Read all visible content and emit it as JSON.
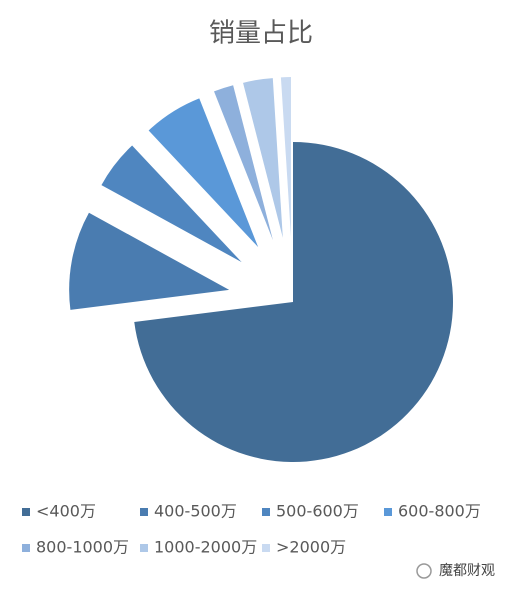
{
  "chart_data": {
    "type": "pie",
    "title": "销量占比",
    "categories": [
      "<400万",
      "400-500万",
      "500-600万",
      "600-800万",
      "800-1000万",
      "1000-2000万",
      ">2000万"
    ],
    "values": [
      73,
      10,
      5,
      6,
      2,
      3,
      1
    ],
    "colors": [
      "#426d96",
      "#4a7cb0",
      "#4f86c0",
      "#5a98d8",
      "#8eb0dc",
      "#aec8e8",
      "#c9daf1"
    ],
    "exploded": [
      false,
      true,
      true,
      true,
      true,
      true,
      true
    ]
  },
  "watermark": "魔都财观"
}
